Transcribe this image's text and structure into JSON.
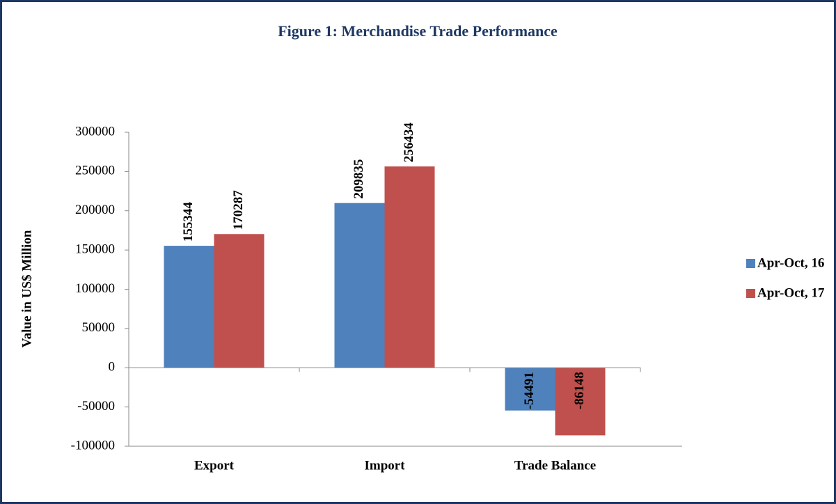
{
  "chart_data": {
    "type": "bar",
    "title": "Figure 1: Merchandise Trade Performance",
    "ylabel": "Value in US$ Million",
    "categories": [
      "Export",
      "Import",
      "Trade Balance"
    ],
    "series": [
      {
        "name": "Apr-Oct, 16",
        "color": "#4f81bd",
        "values": [
          155344,
          209835,
          -54491
        ]
      },
      {
        "name": "Apr-Oct, 17",
        "color": "#c0504d",
        "values": [
          170287,
          256434,
          -86148
        ]
      }
    ],
    "ylim": [
      -100000,
      300000
    ],
    "yticks": [
      -100000,
      -50000,
      0,
      50000,
      100000,
      150000,
      200000,
      250000,
      300000
    ],
    "legend": "right"
  }
}
